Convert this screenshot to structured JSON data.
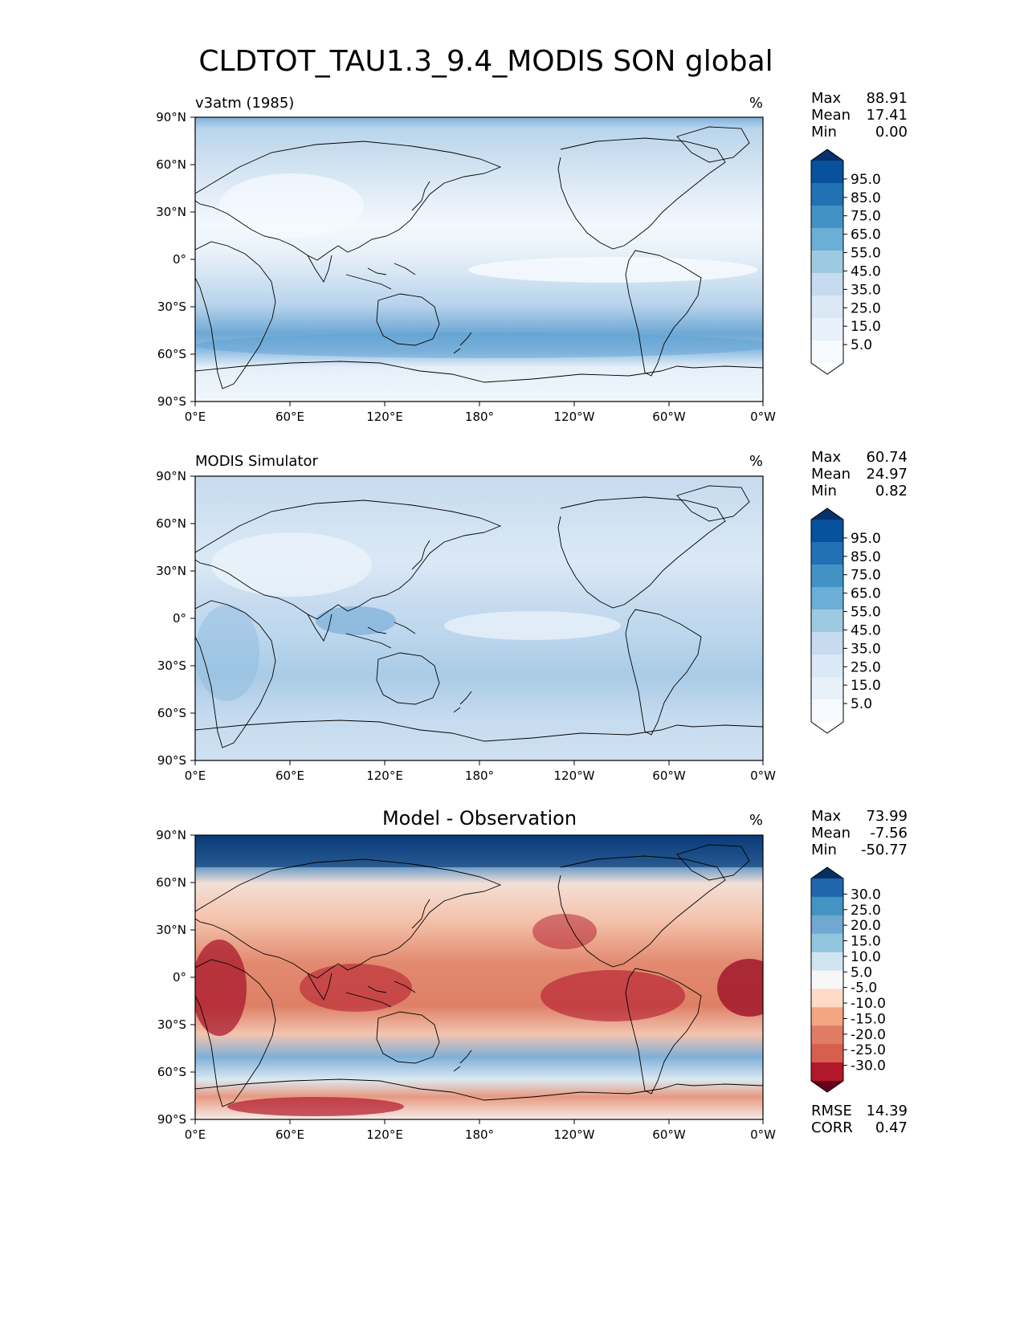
{
  "title": "CLDTOT_TAU1.3_9.4_MODIS SON global",
  "units": "%",
  "lat_ticks": [
    "90°N",
    "60°N",
    "30°N",
    "0°",
    "30°S",
    "60°S",
    "90°S"
  ],
  "lon_ticks": [
    "0°E",
    "60°E",
    "120°E",
    "180°",
    "120°W",
    "60°W",
    "0°W"
  ],
  "panels": [
    {
      "label": "v3atm (1985)",
      "stats": [
        {
          "name": "Max",
          "value": "88.91"
        },
        {
          "name": "Mean",
          "value": "17.41"
        },
        {
          "name": "Min",
          "value": "0.00"
        }
      ],
      "colorbar": {
        "ticks": [
          "95.0",
          "85.0",
          "75.0",
          "65.0",
          "55.0",
          "45.0",
          "35.0",
          "25.0",
          "15.0",
          "5.0"
        ],
        "colors": [
          "#08306b",
          "#08519c",
          "#2171b5",
          "#4292c6",
          "#6baed6",
          "#9ecae1",
          "#c6dbef",
          "#dbe9f6",
          "#e8f1fa",
          "#f7fbff",
          "#ffffff"
        ]
      }
    },
    {
      "label": "MODIS Simulator",
      "stats": [
        {
          "name": "Max",
          "value": "60.74"
        },
        {
          "name": "Mean",
          "value": "24.97"
        },
        {
          "name": "Min",
          "value": "0.82"
        }
      ],
      "colorbar": {
        "ticks": [
          "95.0",
          "85.0",
          "75.0",
          "65.0",
          "55.0",
          "45.0",
          "35.0",
          "25.0",
          "15.0",
          "5.0"
        ],
        "colors": [
          "#08306b",
          "#08519c",
          "#2171b5",
          "#4292c6",
          "#6baed6",
          "#9ecae1",
          "#c6dbef",
          "#dbe9f6",
          "#e8f1fa",
          "#f7fbff",
          "#ffffff"
        ]
      }
    },
    {
      "label": "Model - Observation",
      "stats": [
        {
          "name": "Max",
          "value": "73.99"
        },
        {
          "name": "Mean",
          "value": "-7.56"
        },
        {
          "name": "Min",
          "value": "-50.77"
        }
      ],
      "metrics": [
        {
          "name": "RMSE",
          "value": "14.39"
        },
        {
          "name": "CORR",
          "value": "0.47"
        }
      ],
      "colorbar": {
        "ticks": [
          "30.0",
          "25.0",
          "20.0",
          "15.0",
          "10.0",
          "5.0",
          "-5.0",
          "-10.0",
          "-15.0",
          "-20.0",
          "-25.0",
          "-30.0"
        ],
        "colors": [
          "#053061",
          "#2166ac",
          "#4393c3",
          "#6fa8d0",
          "#92c5de",
          "#d1e5f0",
          "#f7f7f7",
          "#fddbc7",
          "#f4a582",
          "#e07b65",
          "#d6604d",
          "#b2182b",
          "#67001f"
        ]
      }
    }
  ]
}
